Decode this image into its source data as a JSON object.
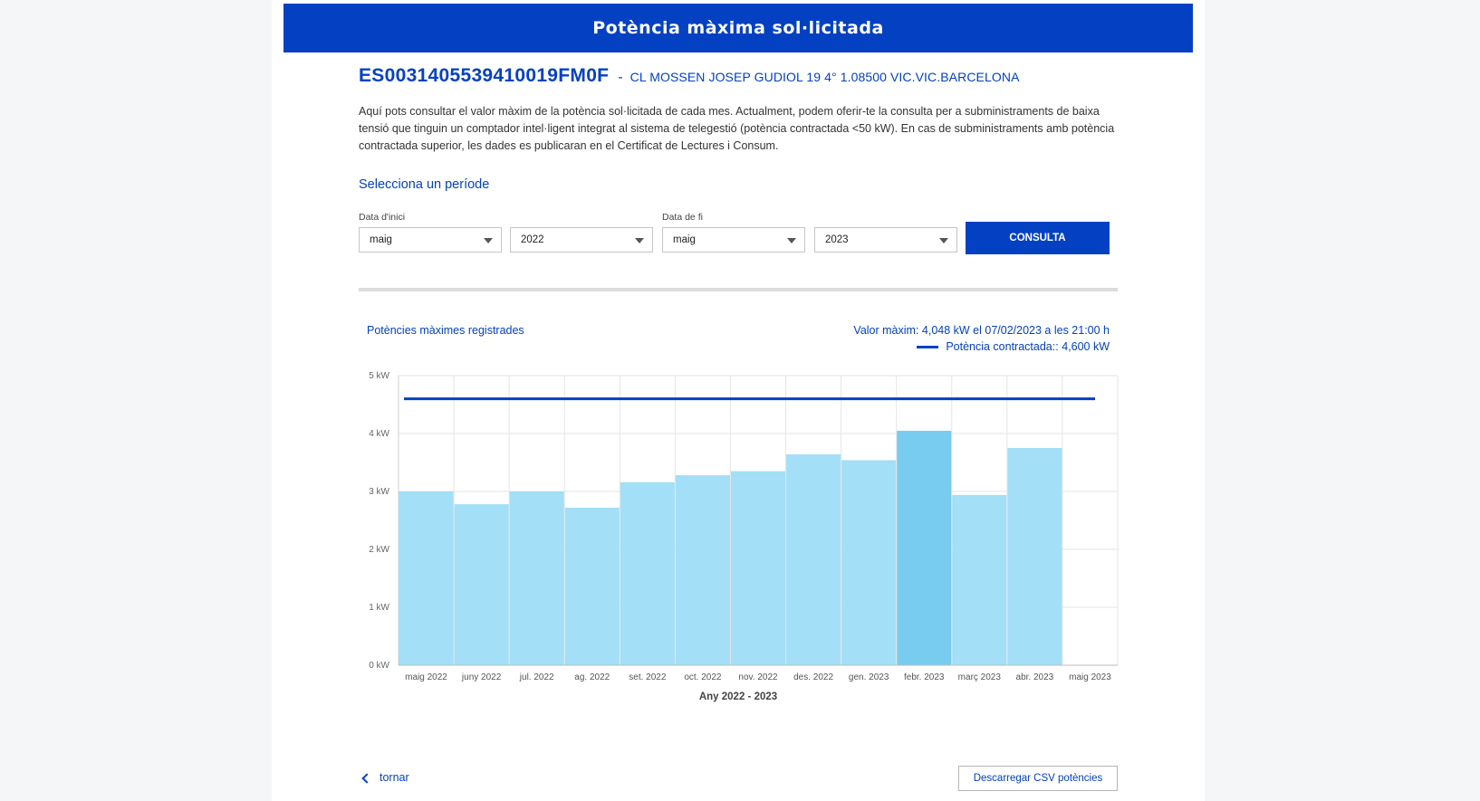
{
  "header": {
    "title": "Potència màxima sol·licitada"
  },
  "supply": {
    "cups": "ES0031405539410019FM0F",
    "separator": "-",
    "address": "CL MOSSEN JOSEP GUDIOL 19 4° 1.08500 VIC.VIC.BARCELONA"
  },
  "intro_text": "Aquí pots consultar el valor màxim de la potència sol·licitada de cada mes. Actualment, podem oferir-te la consulta per a subministraments de baixa tensió que tinguin un comptador intel·ligent integrat al sistema de telegestió (potència contractada <50 kW). En cas de subministraments amb potència contractada superior, les dades es publicaran en el Certificat de Lectures i Consum.",
  "period": {
    "title": "Selecciona un període",
    "start_label": "Data d'inici",
    "end_label": "Data de fi",
    "start_month": "maig",
    "start_year": "2022",
    "end_month": "maig",
    "end_year": "2023",
    "submit_label": "CONSULTA"
  },
  "chart_header": {
    "title": "Potències màximes registrades",
    "max_label": "Valor màxim:",
    "max_value": "4,048 kW el 07/02/2023 a les 21:00 h",
    "contract_label": "Potència contractada::",
    "contract_value": "4,600 kW"
  },
  "chart_data": {
    "type": "bar",
    "categories": [
      "maig 2022",
      "juny 2022",
      "jul. 2022",
      "ag. 2022",
      "set. 2022",
      "oct. 2022",
      "nov. 2022",
      "des. 2022",
      "gen. 2023",
      "febr. 2023",
      "març 2023",
      "abr. 2023",
      "maig 2023"
    ],
    "values": [
      3.0,
      2.78,
      3.0,
      2.72,
      3.16,
      3.28,
      3.35,
      3.64,
      3.54,
      4.048,
      2.94,
      3.75,
      null
    ],
    "highlight_index": 9,
    "reference_line": {
      "name": "Potència contractada",
      "value": 4.6
    },
    "yticks": [
      "0 kW",
      "1 kW",
      "2 kW",
      "3 kW",
      "4 kW",
      "5 kW"
    ],
    "ylim": [
      0,
      5
    ],
    "xlabel": "Any 2022 - 2023",
    "ylabel": "",
    "grid": true,
    "colors": {
      "bar": "#a3dff7",
      "bar_highlight": "#78ccef",
      "line": "#0441c2",
      "grid": "#e6e6e6"
    }
  },
  "footer": {
    "back_label": "tornar",
    "csv_label": "Descarregar CSV potències"
  }
}
